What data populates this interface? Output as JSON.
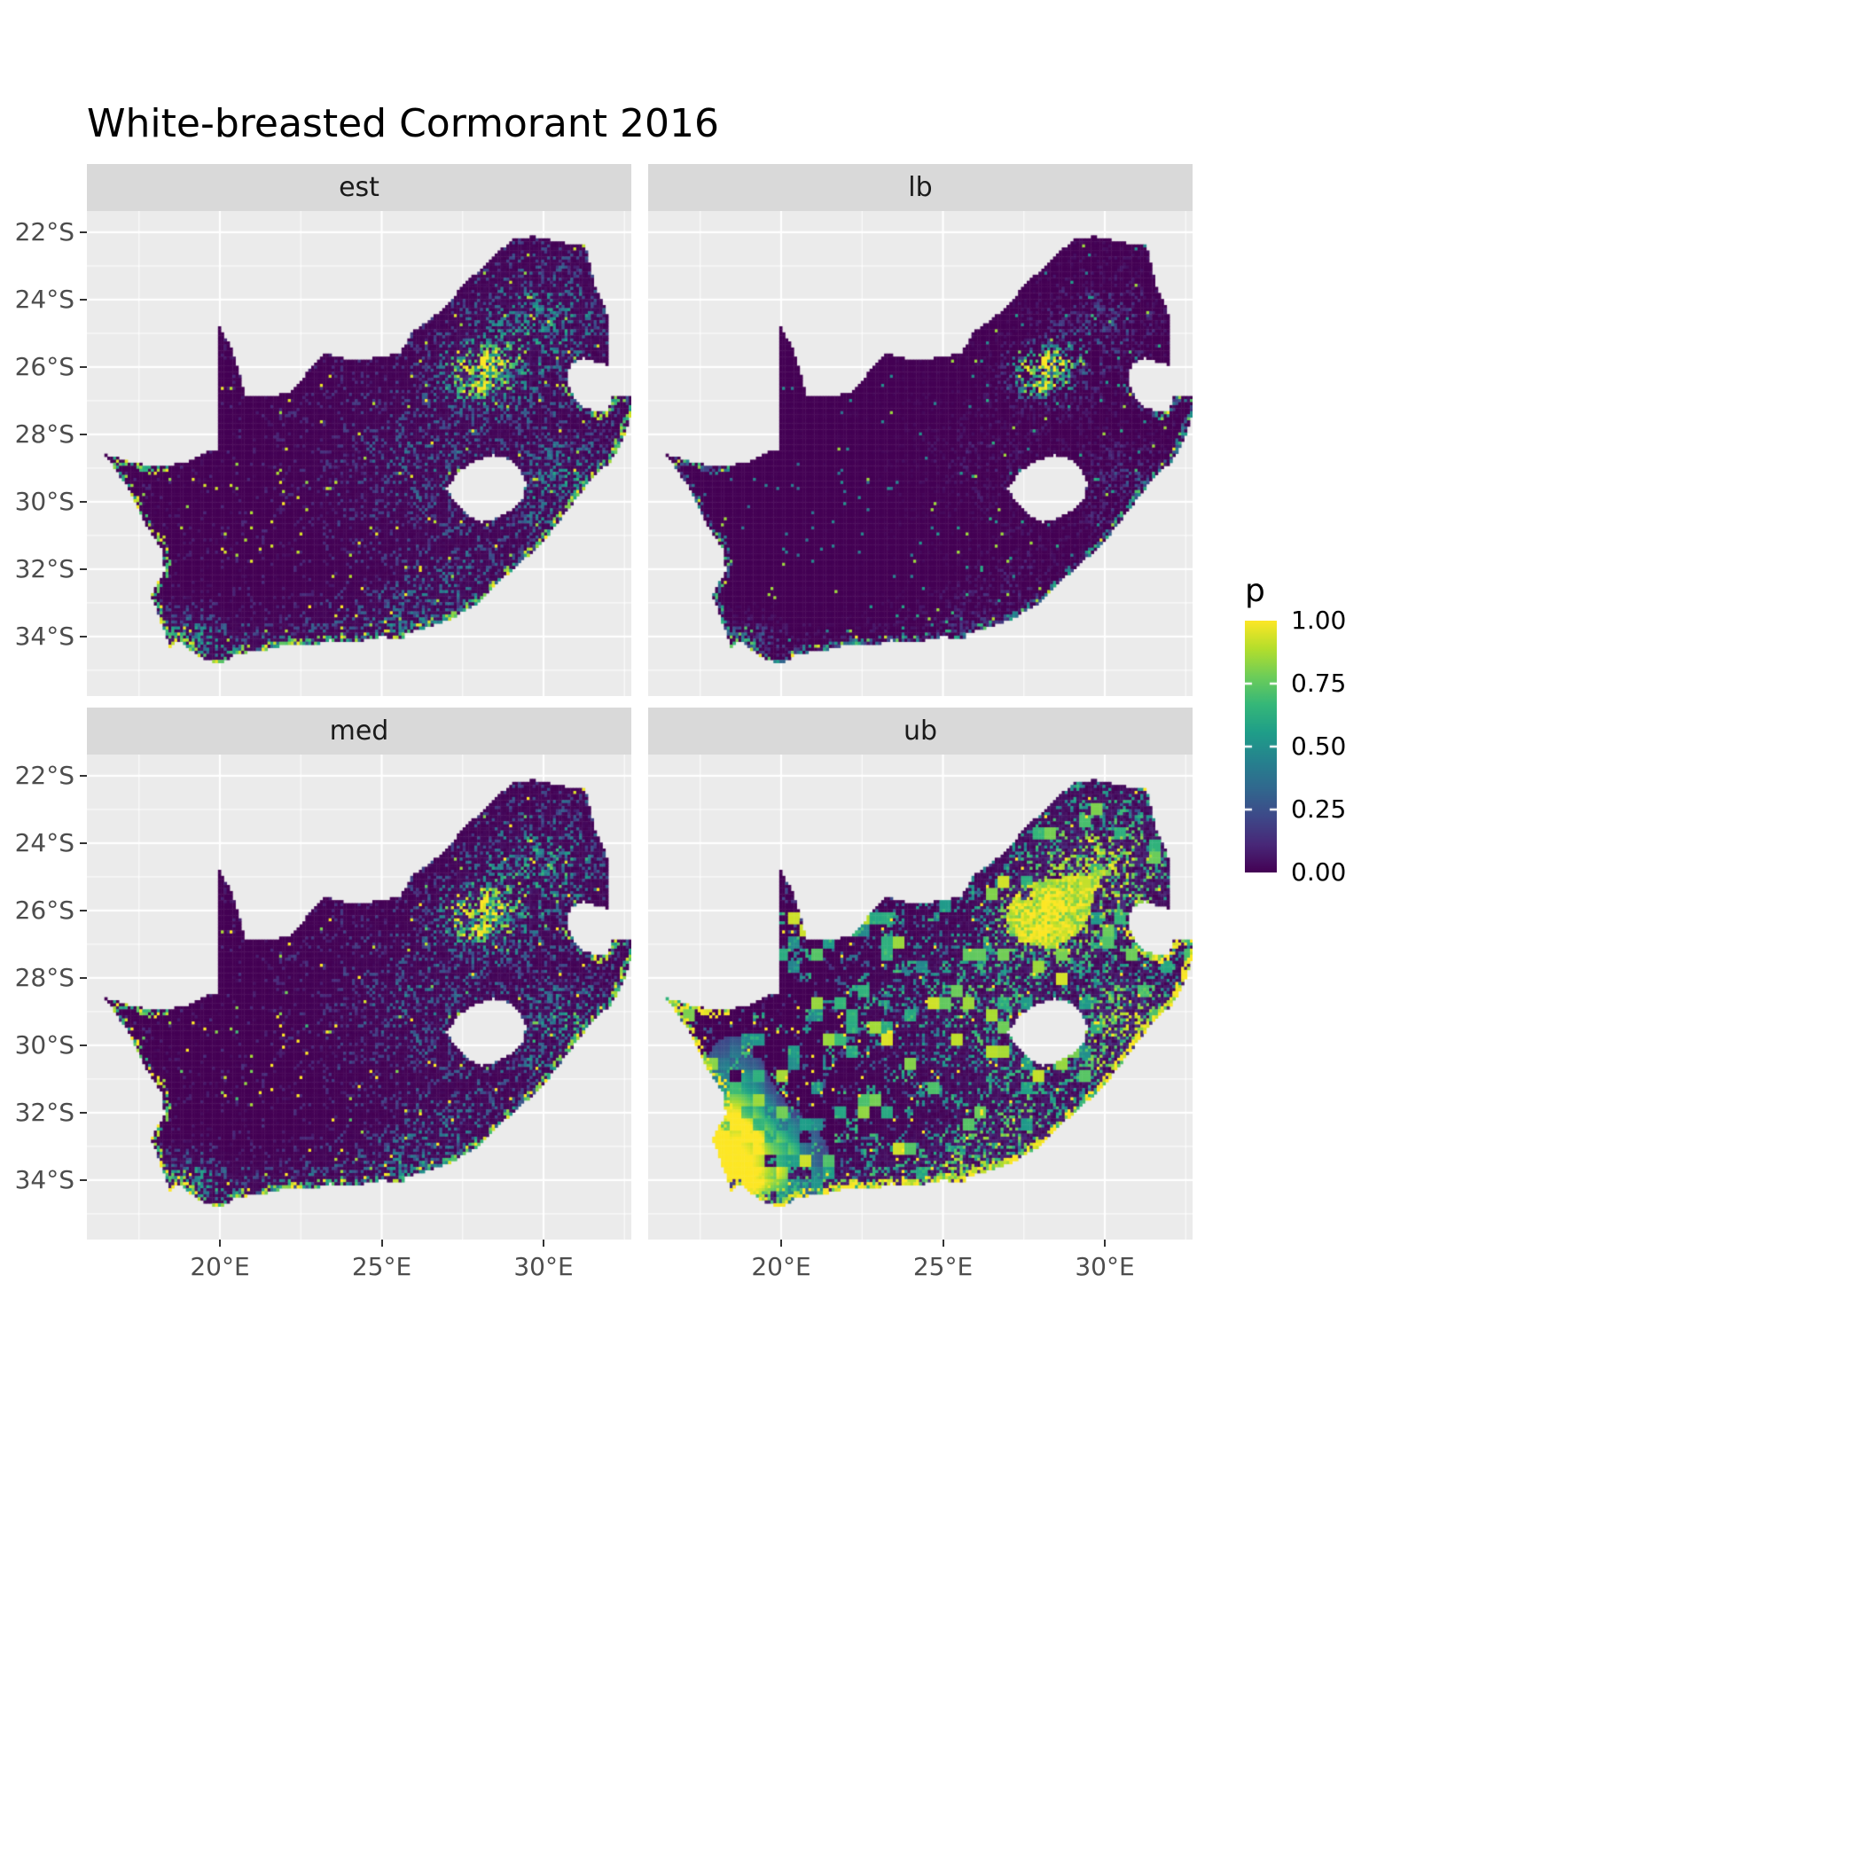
{
  "chart_data": {
    "type": "heatmap",
    "title": "White-breasted Cormorant 2016",
    "region": "South Africa",
    "facets": [
      {
        "label": "est"
      },
      {
        "label": "lb"
      },
      {
        "label": "med"
      },
      {
        "label": "ub"
      }
    ],
    "x_axis": {
      "ticks": [
        {
          "value": 20,
          "label": "20°E"
        },
        {
          "value": 25,
          "label": "25°E"
        },
        {
          "value": 30,
          "label": "30°E"
        }
      ]
    },
    "y_axis": {
      "ticks": [
        {
          "value": -22,
          "label": "22°S"
        },
        {
          "value": -24,
          "label": "24°S"
        },
        {
          "value": -26,
          "label": "26°S"
        },
        {
          "value": -28,
          "label": "28°S"
        },
        {
          "value": -30,
          "label": "30°S"
        },
        {
          "value": -32,
          "label": "32°S"
        },
        {
          "value": -34,
          "label": "34°S"
        }
      ]
    },
    "legend": {
      "title": "p",
      "breaks": [
        {
          "value": 1.0,
          "label": "1.00"
        },
        {
          "value": 0.75,
          "label": "0.75"
        },
        {
          "value": 0.5,
          "label": "0.50"
        },
        {
          "value": 0.25,
          "label": "0.25"
        },
        {
          "value": 0.0,
          "label": "0.00"
        }
      ]
    },
    "value_range": [
      0,
      1
    ],
    "lon_range": [
      15.89,
      32.72
    ],
    "lat_range": [
      -35.77,
      -21.37
    ],
    "palette": {
      "name": "viridis",
      "stops": [
        "#440154",
        "#482878",
        "#3E4989",
        "#31688E",
        "#26828E",
        "#1F9E89",
        "#35B779",
        "#6DCD59",
        "#B4DE2C",
        "#FDE725"
      ]
    },
    "facet_styles": {
      "est": {
        "kind": "estimate"
      },
      "lb": {
        "kind": "lower-bound"
      },
      "med": {
        "kind": "median"
      },
      "ub": {
        "kind": "upper-bound"
      }
    }
  },
  "style": {
    "background": "#FFFFFF",
    "panel_bg": "#EBEBEB",
    "strip_bg": "#D9D9D9",
    "grid_color": "#FFFFFF",
    "axis_text_color": "#4D4D4D",
    "tick_color": "#333333",
    "strip_text_color": "#1A1A1A",
    "title_color": "#000000"
  }
}
